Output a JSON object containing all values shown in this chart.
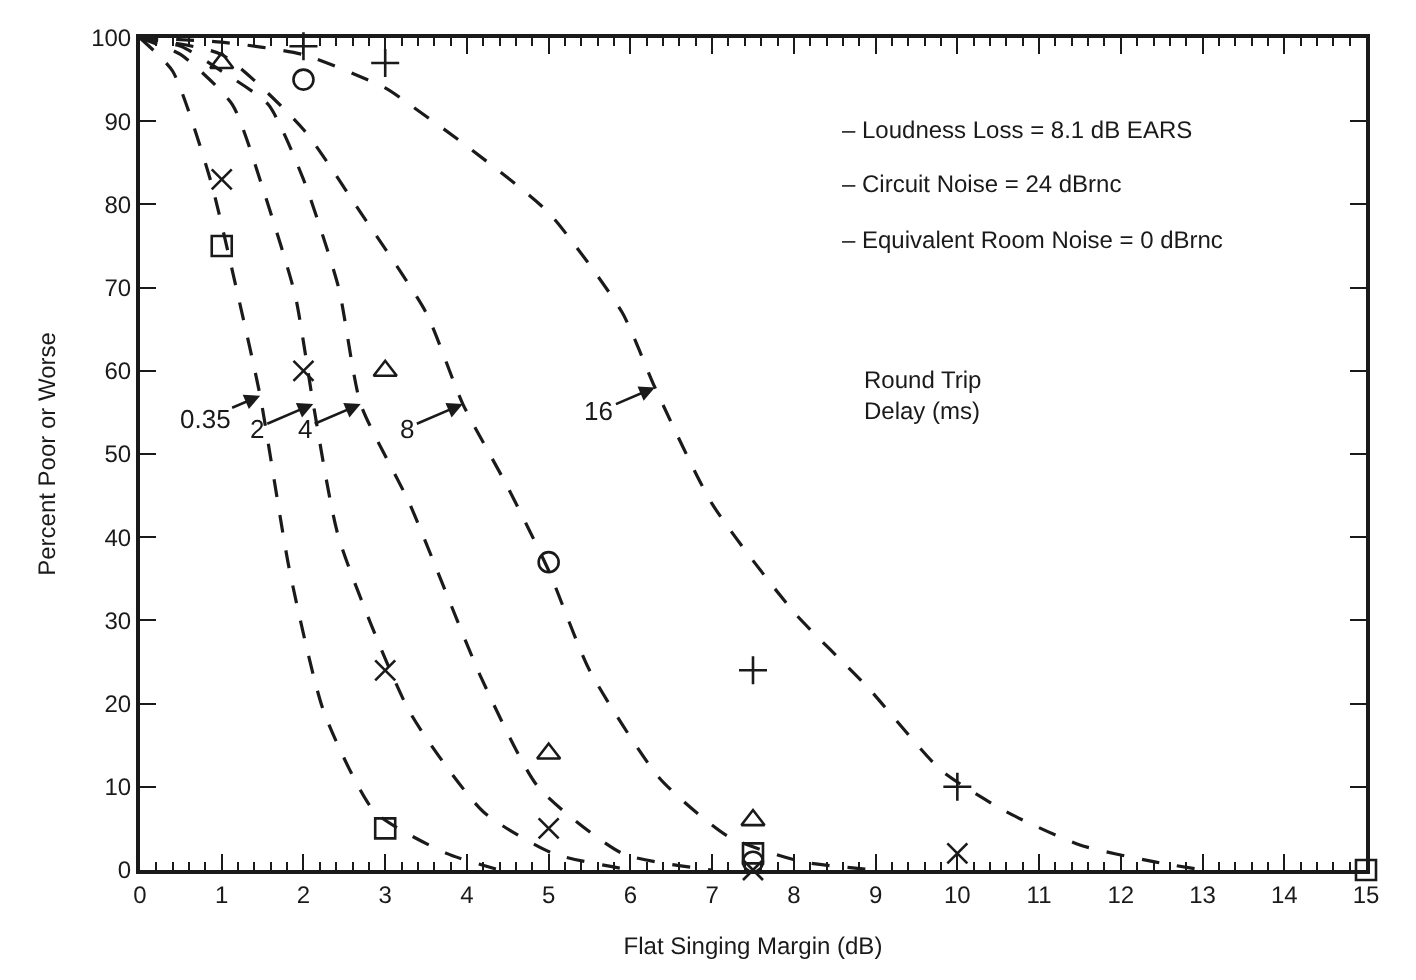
{
  "chart_data": {
    "type": "line",
    "xlabel": "Flat Singing Margin (dB)",
    "ylabel": "Percent Poor or Worse",
    "xlim": [
      0,
      15
    ],
    "xticks": [
      0,
      1,
      2,
      3,
      4,
      5,
      6,
      7,
      8,
      9,
      10,
      11,
      12,
      13,
      14,
      15
    ],
    "ylim": [
      0,
      100
    ],
    "yticks": [
      0,
      10,
      20,
      30,
      40,
      50,
      60,
      70,
      80,
      90,
      100
    ],
    "legend": false,
    "series": [
      {
        "color": "#1a1a1a",
        "line_style": "dashed",
        "marker": "none",
        "x": [
          0,
          0.4,
          0.86,
          1.2,
          1.47,
          1.83,
          2.25,
          2.87,
          3.75,
          4.4
        ],
        "values": [
          100,
          96,
          83,
          69,
          57,
          36,
          19,
          7,
          2,
          0
        ]
      },
      {
        "color": "#1a1a1a",
        "line_style": "dashed",
        "marker": "none",
        "x": [
          0,
          0.5,
          1.13,
          1.5,
          1.9,
          2.12,
          2.43,
          3.3,
          4.2,
          5.05,
          6
        ],
        "values": [
          100,
          98,
          92,
          82,
          69,
          56,
          40,
          19,
          7,
          2,
          0
        ]
      },
      {
        "color": "#1a1a1a",
        "line_style": "dashed",
        "marker": "none",
        "x": [
          0,
          0.5,
          1,
          1.57,
          2,
          2.43,
          2.7,
          3.3,
          4.18,
          4.87,
          5.9,
          7
        ],
        "values": [
          100,
          99,
          96,
          92,
          83,
          70,
          56,
          44,
          23,
          10,
          2,
          0
        ]
      },
      {
        "color": "#1a1a1a",
        "line_style": "dashed",
        "marker": "none",
        "x": [
          0,
          1,
          2,
          2.7,
          3.5,
          3.95,
          4.5,
          5,
          5.5,
          6.36,
          7.2,
          8.1,
          9
        ],
        "values": [
          100,
          98,
          89,
          79,
          67,
          56,
          46,
          36,
          24,
          11,
          4,
          1,
          0
        ]
      },
      {
        "color": "#1a1a1a",
        "line_style": "dashed",
        "marker": "none",
        "x": [
          0,
          1,
          2,
          3,
          3.3,
          4,
          5,
          5.9,
          6.3,
          7,
          8,
          8.9,
          9.8,
          10.6,
          11.5,
          12.4,
          13
        ],
        "values": [
          100,
          99.5,
          98,
          94,
          92,
          87,
          79,
          67,
          58,
          44,
          31,
          22,
          12,
          7,
          3,
          1,
          0
        ]
      },
      {
        "type": "scatter",
        "color": "#1a1a1a",
        "marker": "square",
        "x": [
          1,
          3,
          7.5,
          15
        ],
        "values": [
          75,
          5,
          2,
          0
        ]
      },
      {
        "type": "scatter",
        "color": "#1a1a1a",
        "marker": "x",
        "x": [
          1,
          2,
          3,
          5,
          7.5,
          10
        ],
        "values": [
          83,
          60,
          24,
          5,
          0,
          2
        ]
      },
      {
        "type": "scatter",
        "color": "#1a1a1a",
        "marker": "triangle",
        "x": [
          1,
          3,
          5,
          7.5
        ],
        "values": [
          97,
          60,
          14,
          6
        ]
      },
      {
        "type": "scatter",
        "color": "#1a1a1a",
        "marker": "circle",
        "x": [
          2,
          5,
          7.5
        ],
        "values": [
          95,
          37,
          1
        ]
      },
      {
        "type": "scatter",
        "color": "#1a1a1a",
        "marker": "cross",
        "x": [
          2,
          3,
          7.5,
          10
        ],
        "values": [
          99,
          97,
          24,
          10
        ]
      }
    ],
    "annotations": [
      {
        "text": "0.35",
        "x": 1.47,
        "y": 57
      },
      {
        "text": "2",
        "x": 2.12,
        "y": 56
      },
      {
        "text": "4",
        "x": 2.7,
        "y": 56
      },
      {
        "text": "8",
        "x": 3.95,
        "y": 56
      },
      {
        "text": "16",
        "x": 6.3,
        "y": 58
      },
      "– Loudness Loss = 8.1 dB EARS",
      "– Circuit Noise = 24 dBrnc",
      "– Equivalent Room Noise = 0 dBrnc",
      "Round Trip Delay (ms)"
    ]
  }
}
